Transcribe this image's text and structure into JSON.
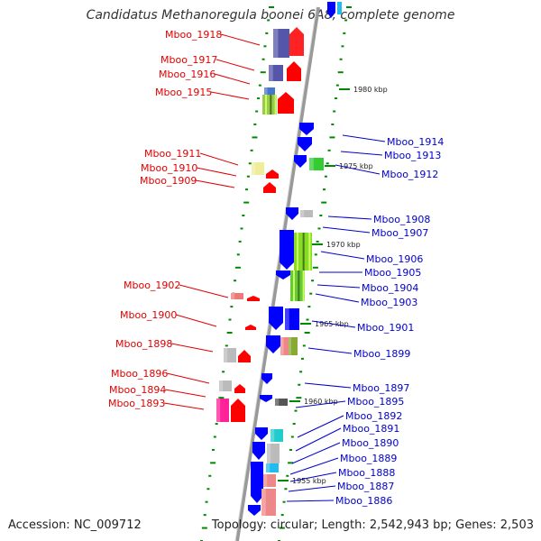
{
  "title": "Candidatus Methanoregula boonei 6A8, complete genome",
  "accession": "Accession: NC_009712",
  "topology": "Topology: circular; Length: 2,542,943 bp; Genes: 2,503",
  "colors": {
    "left_label": "#e00000",
    "right_label": "#0000cc",
    "backbone": "#999999",
    "tick": "#008800",
    "forward_arrow": "#ff0000",
    "reverse_arrow": "#0000ff"
  },
  "kbp_markers": [
    "1980 kbp",
    "1975 kbp",
    "1970 kbp",
    "1965 kbp",
    "1960 kbp",
    "1955 kbp"
  ],
  "genes_left": [
    "Mboo_1918",
    "Mboo_1917",
    "Mboo_1916",
    "Mboo_1915",
    "Mboo_1911",
    "Mboo_1910",
    "Mboo_1909",
    "Mboo_1902",
    "Mboo_1900",
    "Mboo_1898",
    "Mboo_1896",
    "Mboo_1894",
    "Mboo_1893"
  ],
  "genes_right": [
    "Mboo_1914",
    "Mboo_1913",
    "Mboo_1912",
    "Mboo_1908",
    "Mboo_1907",
    "Mboo_1906",
    "Mboo_1905",
    "Mboo_1904",
    "Mboo_1903",
    "Mboo_1901",
    "Mboo_1899",
    "Mboo_1897",
    "Mboo_1895",
    "Mboo_1892",
    "Mboo_1891",
    "Mboo_1890",
    "Mboo_1889",
    "Mboo_1888",
    "Mboo_1887",
    "Mboo_1886"
  ]
}
